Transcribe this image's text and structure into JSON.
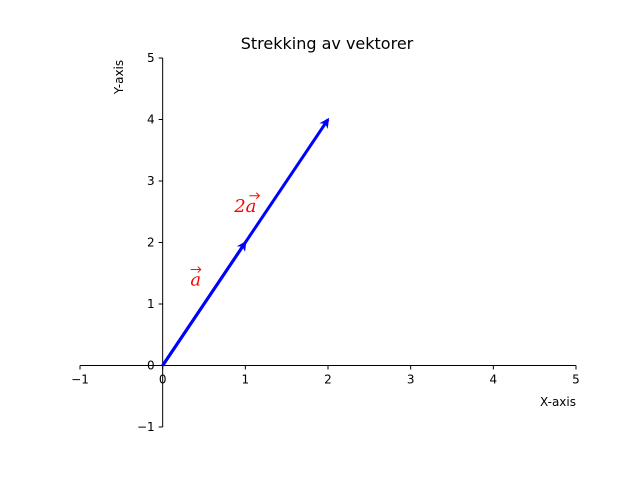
{
  "chart_data": {
    "type": "vector",
    "title": "Strekking av vektorer",
    "xlabel": "X-axis",
    "ylabel": "Y-axis",
    "xlim": [
      -1,
      5
    ],
    "ylim": [
      -1,
      5
    ],
    "xticks": [
      "−1",
      "0",
      "1",
      "2",
      "3",
      "4",
      "5"
    ],
    "yticks": [
      "−1",
      "0",
      "1",
      "2",
      "3",
      "4",
      "5"
    ],
    "grid": false,
    "spines": "centered at origin",
    "vectors": [
      {
        "start": [
          0,
          0
        ],
        "end": [
          2,
          4
        ],
        "color": "#0000ff",
        "label": "2a",
        "label_pos": [
          1,
          2.5
        ],
        "label_color": "#ff0000"
      },
      {
        "start": [
          0,
          0
        ],
        "end": [
          1,
          2
        ],
        "color": "#0000ff",
        "label": "a",
        "label_pos": [
          0.4,
          1.3
        ],
        "label_color": "#ff0000"
      }
    ]
  }
}
